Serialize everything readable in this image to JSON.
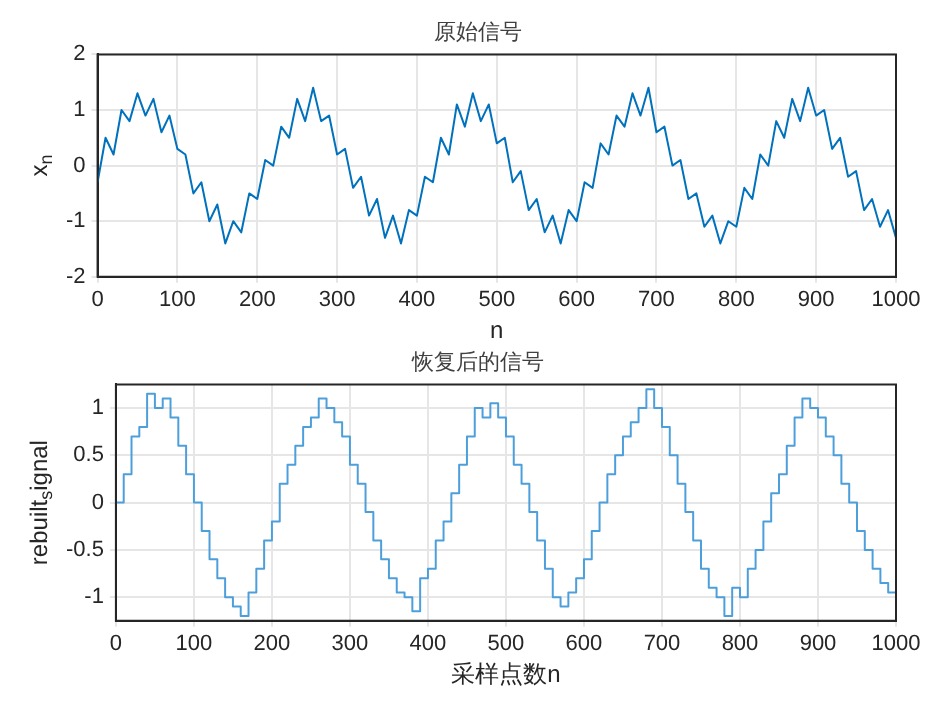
{
  "chart_data": [
    {
      "type": "line",
      "title": "原始信号",
      "xlabel": "n",
      "ylabel": "x$_{n}$",
      "xlim": [
        0,
        1000
      ],
      "xticks": [
        0,
        100,
        200,
        300,
        400,
        500,
        600,
        700,
        800,
        900,
        1000
      ],
      "ylim": [
        -2,
        2
      ],
      "yticks": [
        -2,
        -1,
        0,
        1,
        2
      ],
      "grid": true,
      "line_style": "solid",
      "marker": "none",
      "x": [
        0,
        10,
        20,
        30,
        40,
        50,
        60,
        70,
        80,
        90,
        100,
        110,
        120,
        130,
        140,
        150,
        160,
        170,
        180,
        190,
        200,
        210,
        220,
        230,
        240,
        250,
        260,
        270,
        280,
        290,
        300,
        310,
        320,
        330,
        340,
        350,
        360,
        370,
        380,
        390,
        400,
        410,
        420,
        430,
        440,
        450,
        460,
        470,
        480,
        490,
        500,
        510,
        520,
        530,
        540,
        550,
        560,
        570,
        580,
        590,
        600,
        610,
        620,
        630,
        640,
        650,
        660,
        670,
        680,
        690,
        700,
        710,
        720,
        730,
        740,
        750,
        760,
        770,
        780,
        790,
        800,
        810,
        820,
        830,
        840,
        850,
        860,
        870,
        880,
        890,
        900,
        910,
        920,
        930,
        940,
        950,
        960,
        970,
        980,
        990,
        1000
      ],
      "series": [
        {
          "color": "#0072bd",
          "values": [
            -0.3,
            0.5,
            0.2,
            1.0,
            0.8,
            1.3,
            0.9,
            1.2,
            0.6,
            0.9,
            0.3,
            0.2,
            -0.5,
            -0.3,
            -1.0,
            -0.7,
            -1.4,
            -1.0,
            -1.2,
            -0.5,
            -0.6,
            0.1,
            0.0,
            0.7,
            0.5,
            1.2,
            0.8,
            1.4,
            0.8,
            0.9,
            0.2,
            0.3,
            -0.4,
            -0.2,
            -0.9,
            -0.6,
            -1.3,
            -0.9,
            -1.4,
            -0.8,
            -0.9,
            -0.2,
            -0.3,
            0.5,
            0.2,
            1.1,
            0.7,
            1.3,
            0.8,
            1.1,
            0.4,
            0.5,
            -0.3,
            -0.1,
            -0.8,
            -0.6,
            -1.2,
            -0.9,
            -1.4,
            -0.8,
            -1.0,
            -0.3,
            -0.4,
            0.4,
            0.2,
            0.9,
            0.7,
            1.3,
            0.9,
            1.4,
            0.6,
            0.7,
            0.0,
            0.1,
            -0.6,
            -0.5,
            -1.1,
            -0.9,
            -1.4,
            -1.0,
            -1.1,
            -0.4,
            -0.6,
            0.2,
            0.0,
            0.8,
            0.5,
            1.2,
            0.8,
            1.4,
            0.9,
            1.0,
            0.3,
            0.5,
            -0.2,
            -0.1,
            -0.8,
            -0.6,
            -1.1,
            -0.8,
            -1.3
          ]
        }
      ]
    },
    {
      "type": "step",
      "title": "恢复后的信号",
      "xlabel": "采样点数n",
      "ylabel": "rebuilt$_{s}$ignal",
      "xlim": [
        0,
        1000
      ],
      "xticks": [
        0,
        100,
        200,
        300,
        400,
        500,
        600,
        700,
        800,
        900,
        1000
      ],
      "ylim": [
        -1.25,
        1.25
      ],
      "yticks": [
        -1,
        -0.5,
        0,
        0.5,
        1
      ],
      "grid": true,
      "line_style": "solid",
      "marker": "none",
      "x": [
        0,
        10,
        20,
        30,
        40,
        50,
        60,
        70,
        80,
        90,
        100,
        110,
        120,
        130,
        140,
        150,
        160,
        170,
        180,
        190,
        200,
        210,
        220,
        230,
        240,
        250,
        260,
        270,
        280,
        290,
        300,
        310,
        320,
        330,
        340,
        350,
        360,
        370,
        380,
        390,
        400,
        410,
        420,
        430,
        440,
        450,
        460,
        470,
        480,
        490,
        500,
        510,
        520,
        530,
        540,
        550,
        560,
        570,
        580,
        590,
        600,
        610,
        620,
        630,
        640,
        650,
        660,
        670,
        680,
        690,
        700,
        710,
        720,
        730,
        740,
        750,
        760,
        770,
        780,
        790,
        800,
        810,
        820,
        830,
        840,
        850,
        860,
        870,
        880,
        890,
        900,
        910,
        920,
        930,
        940,
        950,
        960,
        970,
        980,
        990,
        1000
      ],
      "series": [
        {
          "color": "#4d9fdb",
          "values": [
            0,
            0.3,
            0.7,
            0.8,
            1.15,
            1.0,
            1.1,
            0.9,
            0.6,
            0.3,
            0.0,
            -0.3,
            -0.6,
            -0.8,
            -1.0,
            -1.1,
            -1.2,
            -0.95,
            -0.7,
            -0.4,
            -0.2,
            0.2,
            0.4,
            0.6,
            0.8,
            0.9,
            1.1,
            1.0,
            0.85,
            0.7,
            0.4,
            0.2,
            -0.1,
            -0.4,
            -0.6,
            -0.8,
            -0.95,
            -1.0,
            -1.15,
            -0.8,
            -0.7,
            -0.4,
            -0.2,
            0.1,
            0.4,
            0.7,
            1.0,
            0.9,
            1.05,
            0.9,
            0.7,
            0.4,
            0.2,
            -0.1,
            -0.4,
            -0.7,
            -1.0,
            -1.1,
            -0.95,
            -0.8,
            -0.6,
            -0.3,
            0.0,
            0.3,
            0.5,
            0.7,
            0.85,
            1.0,
            1.2,
            1.0,
            0.8,
            0.5,
            0.2,
            -0.1,
            -0.4,
            -0.7,
            -0.9,
            -1.0,
            -1.2,
            -0.9,
            -1.0,
            -0.7,
            -0.5,
            -0.2,
            0.1,
            0.3,
            0.6,
            0.9,
            1.1,
            1.0,
            0.9,
            0.7,
            0.5,
            0.2,
            0.0,
            -0.3,
            -0.5,
            -0.7,
            -0.85,
            -0.95,
            -1.0
          ]
        }
      ]
    }
  ]
}
